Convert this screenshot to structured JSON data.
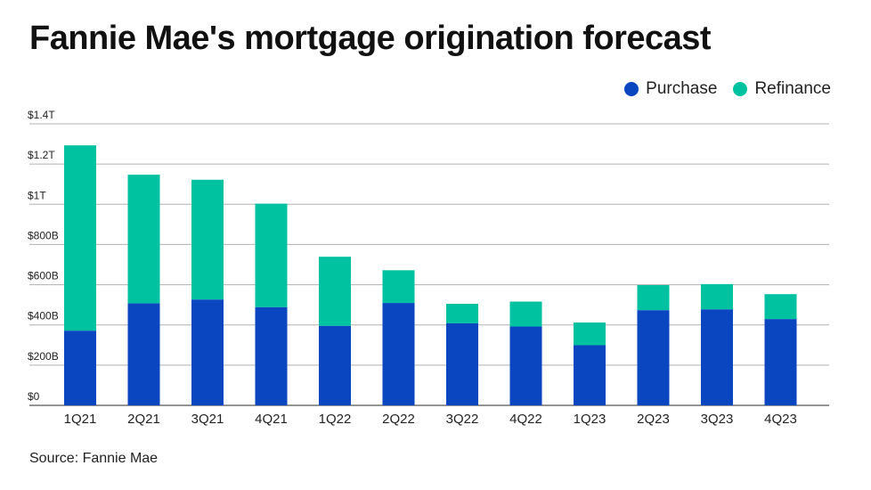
{
  "title": "Fannie Mae's mortgage origination forecast",
  "source": "Source: Fannie Mae",
  "colors": {
    "purchase": "#0a46bf",
    "refinance": "#00c2a0",
    "grid": "#b0b0b0",
    "axis": "#555555"
  },
  "legend": [
    {
      "label": "Purchase",
      "color": "#0a46bf"
    },
    {
      "label": "Refinance",
      "color": "#00c2a0"
    }
  ],
  "chart_data": {
    "type": "bar",
    "stacked": true,
    "title": "Fannie Mae's mortgage origination forecast",
    "xlabel": "",
    "ylabel": "",
    "ylim": [
      0,
      1400
    ],
    "yunit": "billions of dollars",
    "yticks": [
      {
        "value": 0,
        "label": "$0"
      },
      {
        "value": 200,
        "label": "$200B"
      },
      {
        "value": 400,
        "label": "$400B"
      },
      {
        "value": 600,
        "label": "$600B"
      },
      {
        "value": 800,
        "label": "$800B"
      },
      {
        "value": 1000,
        "label": "$1T"
      },
      {
        "value": 1200,
        "label": "$1.2T"
      },
      {
        "value": 1400,
        "label": "$1.4T"
      }
    ],
    "categories": [
      "1Q21",
      "2Q21",
      "3Q21",
      "4Q21",
      "1Q22",
      "2Q22",
      "3Q22",
      "4Q22",
      "1Q23",
      "2Q23",
      "3Q23",
      "4Q23"
    ],
    "series": [
      {
        "name": "Purchase",
        "values": [
          371,
          507,
          526,
          488,
          395,
          509,
          408,
          392,
          299,
          473,
          477,
          429
        ]
      },
      {
        "name": "Refinance",
        "values": [
          922,
          640,
          596,
          515,
          344,
          163,
          97,
          124,
          113,
          125,
          126,
          124
        ]
      }
    ],
    "legend_position": "top-right",
    "grid": true
  }
}
